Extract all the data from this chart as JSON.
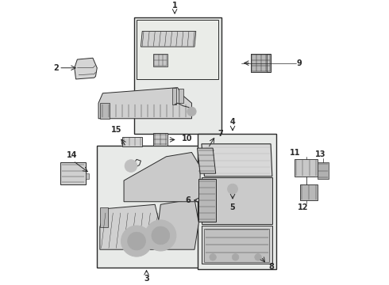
{
  "bg_color": "#ffffff",
  "line_color": "#2a2a2a",
  "box_bg": "#e8eae8",
  "fig_w": 4.9,
  "fig_h": 3.6,
  "dpi": 100,
  "boxes": {
    "b1": [
      0.285,
      0.535,
      0.595,
      0.955
    ],
    "b3": [
      0.155,
      0.06,
      0.535,
      0.495
    ],
    "b4": [
      0.51,
      0.055,
      0.79,
      0.535
    ]
  },
  "labels": {
    "1": [
      0.43,
      0.975,
      0.43,
      0.955
    ],
    "2": [
      0.025,
      0.77,
      0.09,
      0.77
    ],
    "3": [
      0.33,
      0.032,
      0.33,
      0.065
    ],
    "4": [
      0.635,
      0.975,
      0.635,
      0.955
    ],
    "5": [
      0.625,
      0.33,
      0.625,
      0.355
    ],
    "6": [
      0.505,
      0.315,
      0.515,
      0.315
    ],
    "7": [
      0.582,
      0.555,
      0.572,
      0.535
    ],
    "8": [
      0.74,
      0.115,
      0.73,
      0.135
    ],
    "9": [
      0.865,
      0.785,
      0.84,
      0.785
    ],
    "10": [
      0.455,
      0.56,
      0.43,
      0.545
    ],
    "11": [
      0.845,
      0.445,
      0.87,
      0.43
    ],
    "12": [
      0.875,
      0.32,
      0.895,
      0.345
    ],
    "13": [
      0.935,
      0.435,
      0.91,
      0.415
    ],
    "14": [
      0.065,
      0.39,
      0.065,
      0.42
    ],
    "15": [
      0.23,
      0.555,
      0.265,
      0.535
    ]
  }
}
